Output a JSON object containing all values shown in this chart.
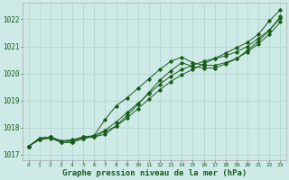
{
  "title": "Graphe pression niveau de la mer (hPa)",
  "bg_color": "#ceeae7",
  "line_color": "#1a5c1a",
  "grid_color": "#b8d8d5",
  "xlim": [
    -0.5,
    23.5
  ],
  "ylim": [
    1016.8,
    1022.6
  ],
  "yticks": [
    1017,
    1018,
    1019,
    1020,
    1021,
    1022
  ],
  "xticks": [
    0,
    1,
    2,
    3,
    4,
    5,
    6,
    7,
    8,
    9,
    10,
    11,
    12,
    13,
    14,
    15,
    16,
    17,
    18,
    19,
    20,
    21,
    22,
    23
  ],
  "series": [
    [
      1017.3,
      1017.55,
      1017.65,
      1017.45,
      1017.45,
      1017.6,
      1017.65,
      1017.85,
      1018.05,
      1018.35,
      1018.7,
      1019.05,
      1019.4,
      1019.7,
      1019.95,
      1020.15,
      1020.35,
      1020.55,
      1020.75,
      1020.95,
      1021.15,
      1021.45,
      1021.95,
      1022.35
    ],
    [
      1017.3,
      1017.55,
      1017.6,
      1017.45,
      1017.45,
      1017.6,
      1017.7,
      1017.9,
      1018.2,
      1018.55,
      1018.9,
      1019.25,
      1019.6,
      1019.9,
      1020.15,
      1020.3,
      1020.45,
      1020.55,
      1020.65,
      1020.8,
      1021.0,
      1021.3,
      1021.6,
      1022.05
    ],
    [
      1017.3,
      1017.6,
      1017.65,
      1017.5,
      1017.5,
      1017.65,
      1017.7,
      1018.3,
      1018.8,
      1019.1,
      1019.45,
      1019.8,
      1020.15,
      1020.45,
      1020.6,
      1020.4,
      1020.3,
      1020.3,
      1020.4,
      1020.55,
      1020.8,
      1021.1,
      1021.45,
      1021.9
    ],
    [
      1017.3,
      1017.6,
      1017.65,
      1017.5,
      1017.55,
      1017.65,
      1017.65,
      1017.75,
      1018.05,
      1018.45,
      1018.85,
      1019.3,
      1019.75,
      1020.1,
      1020.4,
      1020.25,
      1020.2,
      1020.2,
      1020.35,
      1020.55,
      1020.85,
      1021.2,
      1021.6,
      1022.1
    ]
  ]
}
